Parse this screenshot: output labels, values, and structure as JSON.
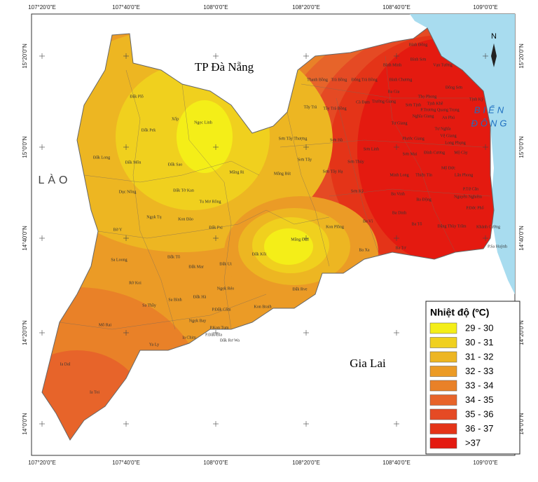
{
  "axes": {
    "longitudes": [
      "107°20'0\"E",
      "107°40'0\"E",
      "108°0'0\"E",
      "108°20'0\"E",
      "108°40'0\"E",
      "109°0'0\"E"
    ],
    "latitudes": [
      "15°20'0\"N",
      "15°0'0\"N",
      "14°40'0\"N",
      "14°20'0\"N",
      "14°0'0\"N"
    ]
  },
  "map": {
    "north": "N",
    "danang": "TP Đà Nẵng",
    "lao": "LÀO",
    "sea": [
      "BIỂN",
      "ĐÔNG"
    ],
    "gialai": "Gia Lai",
    "places": [
      "Đắk Plô",
      "Xốp",
      "Ngọc Linh",
      "Đắk Pek",
      "Đắk Long",
      "Đắk Môn",
      "Đắk Sao",
      "Măng Ri",
      "Dục Nông",
      "Đắk Tờ Kan",
      "Tu Mơ Rông",
      "Ngọk Tụ",
      "Kon Đào",
      "Đắk Pxi",
      "Bờ Y",
      "Đắk Tô",
      "Đắk Mar",
      "Đắk Ui",
      "Đắk Kôi",
      "Măng Đen",
      "Sa Loong",
      "Rờ Koi",
      "Ngọk Réo",
      "Đắk Rve",
      "Sa Thầy",
      "Sa Bình",
      "Đắk Hà",
      "P.Đắk Cấm",
      "Kon Braih",
      "Ngọk Bay",
      "P.Kon Tum",
      "Mô Rai",
      "Ia Chim",
      "P.Đắk Bla",
      "Đắk Rơ Wa",
      "Ya Ly",
      "Ia Dal",
      "Ia Toi",
      "Măng Bút",
      "Sơn Tây Thượng",
      "Sơn Tây",
      "Sơn Tây Hạ",
      "Kon Plông",
      "Sơn Kỳ",
      "Ba Vì",
      "Ba Xa",
      "Ba Tơ",
      "Sơn Hà",
      "Sơn Thủy",
      "Sơn Linh",
      "Thanh Bồng",
      "Trà Bồng",
      "Đông Trà Bồng",
      "Bình Chương",
      "Bình Minh",
      "Bình Sơn",
      "Vạn Tường",
      "Bình Đông",
      "Ba Gia",
      "Thọ Phong",
      "Tây Trà",
      "Tây Trà Bồng",
      "Cà Đam",
      "Trường Giang",
      "Sơn Tịnh",
      "Tịnh Khê",
      "Đông Sơn",
      "Tịnh Kỳ",
      "Tư Giang",
      "Nghĩa Giang",
      "P.Trương Quang Trọng",
      "An Phú",
      "Phước Giang",
      "Tư Nghĩa",
      "Vệ Giang",
      "Long Phụng",
      "Sơn Mai",
      "Đình Cương",
      "Mộ Cày",
      "Minh Long",
      "Thiện Tín",
      "Mộ Đức",
      "Lân Phong",
      "Ba Vinh",
      "Ba Động",
      "P.Tứ Cân",
      "Nguyễn Nghiêm",
      "P.Đức Phổ",
      "Ba Dinh",
      "Ba Tô",
      "Đặng Thùy Trâm",
      "Khánh Cường",
      "P.Sa Huỳnh"
    ]
  },
  "legend": {
    "title": "Nhiệt độ (ºC)",
    "items": [
      {
        "label": "29 - 30",
        "color": "#f4ee18"
      },
      {
        "label": "30 - 31",
        "color": "#f0d01e"
      },
      {
        "label": "31  - 32",
        "color": "#edb622"
      },
      {
        "label": "32 - 33",
        "color": "#eb9b26"
      },
      {
        "label": "33 - 34",
        "color": "#e98128"
      },
      {
        "label": "34 - 35",
        "color": "#e7642a"
      },
      {
        "label": "35 - 36",
        "color": "#e54a24"
      },
      {
        "label": "36 - 37",
        "color": "#e43418"
      },
      {
        "label": ">37",
        "color": "#e41a10"
      }
    ]
  }
}
